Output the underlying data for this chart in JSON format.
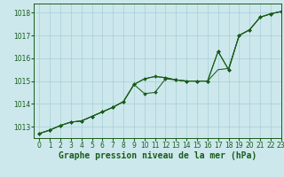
{
  "title": "Graphe pression niveau de la mer (hPa)",
  "bg_color": "#cce8ec",
  "grid_color": "#a8cdd4",
  "line_color": "#1a5c1a",
  "marker_color": "#1a5c1a",
  "xlim": [
    -0.5,
    23
  ],
  "ylim": [
    1012.5,
    1018.4
  ],
  "yticks": [
    1013,
    1014,
    1015,
    1016,
    1017,
    1018
  ],
  "xticks": [
    0,
    1,
    2,
    3,
    4,
    5,
    6,
    7,
    8,
    9,
    10,
    11,
    12,
    13,
    14,
    15,
    16,
    17,
    18,
    19,
    20,
    21,
    22,
    23
  ],
  "tick_fontsize": 5.5,
  "xlabel_fontsize": 7,
  "line1_x": [
    0,
    1,
    2,
    3,
    4,
    5,
    6,
    7,
    8,
    9,
    10,
    11,
    12,
    13,
    14,
    15,
    16,
    17,
    18,
    19,
    20,
    21,
    22,
    23
  ],
  "line1_y": [
    1012.7,
    1012.85,
    1013.05,
    1013.2,
    1013.25,
    1013.45,
    1013.65,
    1013.85,
    1014.1,
    1014.85,
    1015.1,
    1015.2,
    1015.15,
    1015.05,
    1015.0,
    1015.0,
    1015.0,
    1016.3,
    1015.5,
    1017.0,
    1017.25,
    1017.8,
    1017.95,
    1018.05
  ],
  "line2_x": [
    0,
    1,
    2,
    3,
    4,
    5,
    6,
    7,
    8,
    9,
    10,
    11,
    12,
    13,
    14,
    15,
    16,
    17,
    18,
    19,
    20,
    21,
    22,
    23
  ],
  "line2_y": [
    1012.7,
    1012.85,
    1013.05,
    1013.2,
    1013.25,
    1013.45,
    1013.65,
    1013.85,
    1014.1,
    1014.85,
    1014.45,
    1014.5,
    1015.1,
    1015.05,
    1015.0,
    1015.0,
    1015.0,
    1016.3,
    1015.5,
    1017.0,
    1017.25,
    1017.8,
    1017.95,
    1018.05
  ],
  "line3_x": [
    0,
    1,
    2,
    3,
    4,
    5,
    6,
    7,
    8,
    9,
    10,
    11,
    12,
    13,
    14,
    15,
    16,
    17,
    18,
    19,
    20,
    21,
    22,
    23
  ],
  "line3_y": [
    1012.7,
    1012.85,
    1013.05,
    1013.2,
    1013.25,
    1013.45,
    1013.65,
    1013.85,
    1014.1,
    1014.85,
    1015.1,
    1015.2,
    1015.15,
    1015.05,
    1015.0,
    1015.0,
    1015.0,
    1015.5,
    1015.55,
    1017.0,
    1017.25,
    1017.8,
    1017.95,
    1018.05
  ]
}
